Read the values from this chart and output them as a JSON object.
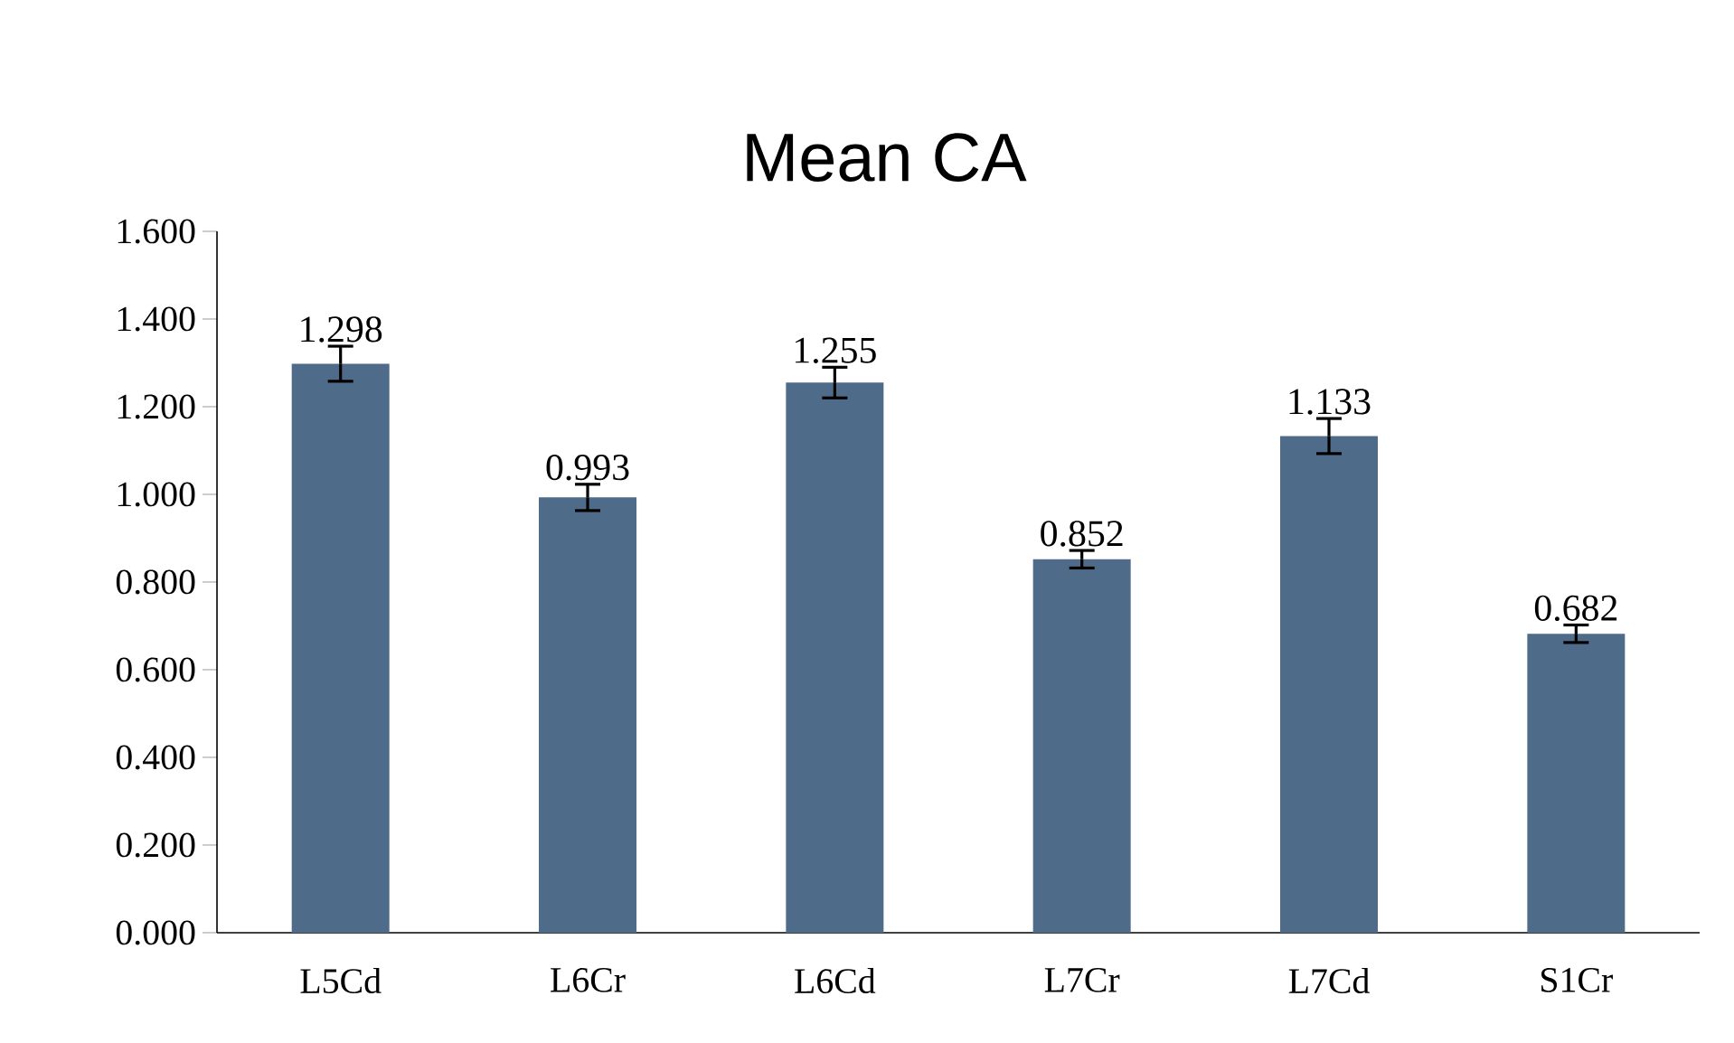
{
  "chart_data": {
    "type": "bar",
    "title": "Mean CA",
    "categories": [
      "L5Cd",
      "L6Cr",
      "L6Cd",
      "L7Cr",
      "L7Cd",
      "S1Cr"
    ],
    "values": [
      1.298,
      0.993,
      1.255,
      0.852,
      1.133,
      0.682
    ],
    "errors": [
      0.04,
      0.03,
      0.035,
      0.02,
      0.04,
      0.02
    ],
    "color": "#4f6b8a",
    "ylim": [
      0,
      1.6
    ],
    "yticks": [
      {
        "value": 0,
        "label": "0.000"
      },
      {
        "value": 0.2,
        "label": "0.200"
      },
      {
        "value": 0.4,
        "label": "0.400"
      },
      {
        "value": 0.6,
        "label": "0.600"
      },
      {
        "value": 0.8,
        "label": "0.800"
      },
      {
        "value": 1.0,
        "label": "1.000"
      },
      {
        "value": 1.2,
        "label": "1.200"
      },
      {
        "value": 1.4,
        "label": "1.400"
      },
      {
        "value": 1.6,
        "label": "1.600"
      }
    ],
    "data_labels": true
  }
}
